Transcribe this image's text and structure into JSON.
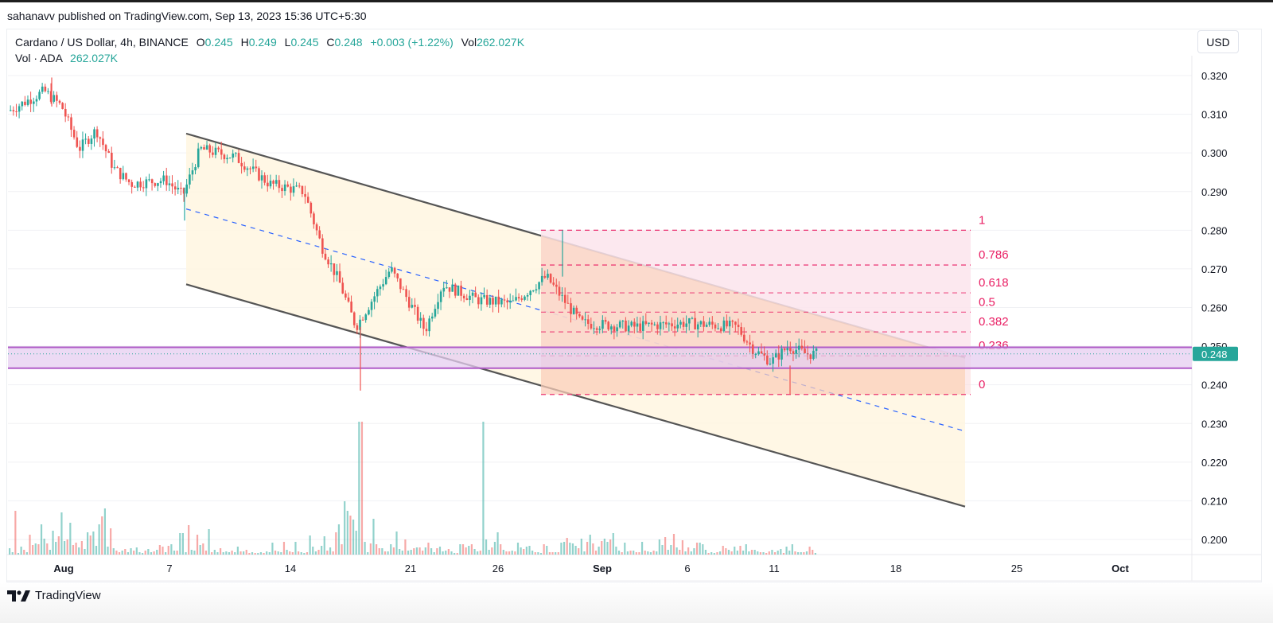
{
  "header": {
    "published": "sahanavv published on TradingView.com, Sep 13, 2023 15:36 UTC+5:30"
  },
  "legend": {
    "symbol": "Cardano / US Dollar, 4h, BINANCE",
    "open_label": "O",
    "open": "0.245",
    "high_label": "H",
    "high": "0.249",
    "low_label": "L",
    "low": "0.245",
    "close_label": "C",
    "close": "0.248",
    "change": "+0.003 (+1.22%)",
    "vol_label": "Vol",
    "vol": "262.027K",
    "vol_indicator_label": "Vol · ADA",
    "vol_indicator_value": "262.027K"
  },
  "currency_button": "USD",
  "last_price_tag": "0.248",
  "footer": {
    "brand": "TradingView"
  },
  "colors": {
    "up": "#26a69a",
    "down": "#ef5350",
    "channel_line": "#555555",
    "channel_fill": "#fff6e0",
    "midline": "#2962ff",
    "fib": "#e91e63",
    "fib_fill_upper": "#fce4ec",
    "fib_fill_lower": "#fde0d0",
    "support_zone": "#e6cef0",
    "support_border": "#b05cc8",
    "price_tag": "#26a69a"
  },
  "chart_data": {
    "type": "candlestick",
    "title": "Cardano / US Dollar, 4h, BINANCE",
    "xlabel": "",
    "ylabel": "USD",
    "ylim": [
      0.195,
      0.325
    ],
    "y_ticks": [
      "0.320",
      "0.310",
      "0.300",
      "0.290",
      "0.280",
      "0.270",
      "0.260",
      "0.250",
      "0.240",
      "0.230",
      "0.220",
      "0.210",
      "0.200"
    ],
    "x_ticks": [
      {
        "label": "Aug",
        "bold": true
      },
      {
        "label": "7",
        "bold": false
      },
      {
        "label": "14",
        "bold": false
      },
      {
        "label": "21",
        "bold": false
      },
      {
        "label": "26",
        "bold": false
      },
      {
        "label": "Sep",
        "bold": true
      },
      {
        "label": "6",
        "bold": false
      },
      {
        "label": "11",
        "bold": false
      },
      {
        "label": "18",
        "bold": false
      },
      {
        "label": "25",
        "bold": false
      },
      {
        "label": "Oct",
        "bold": true
      }
    ],
    "grid": true,
    "last_price": 0.248,
    "ohlc_last": {
      "open": 0.245,
      "high": 0.249,
      "low": 0.245,
      "close": 0.248,
      "change": 0.003,
      "change_pct": 1.22
    },
    "volume_last": "262.027K",
    "price_path_approx": [
      {
        "date": "Jul 29",
        "price": 0.311
      },
      {
        "date": "Jul 31",
        "price": 0.316
      },
      {
        "date": "Aug 1",
        "price": 0.312
      },
      {
        "date": "Aug 2",
        "price": 0.301
      },
      {
        "date": "Aug 3",
        "price": 0.306
      },
      {
        "date": "Aug 4",
        "price": 0.296
      },
      {
        "date": "Aug 5",
        "price": 0.292
      },
      {
        "date": "Aug 7",
        "price": 0.293
      },
      {
        "date": "Aug 8",
        "price": 0.289
      },
      {
        "date": "Aug 9",
        "price": 0.301
      },
      {
        "date": "Aug 11",
        "price": 0.299
      },
      {
        "date": "Aug 13",
        "price": 0.292
      },
      {
        "date": "Aug 15",
        "price": 0.29
      },
      {
        "date": "Aug 16",
        "price": 0.276
      },
      {
        "date": "Aug 17",
        "price": 0.267
      },
      {
        "date": "Aug 17 low",
        "price": 0.239
      },
      {
        "date": "Aug 18",
        "price": 0.255
      },
      {
        "date": "Aug 20",
        "price": 0.27
      },
      {
        "date": "Aug 22",
        "price": 0.254
      },
      {
        "date": "Aug 23",
        "price": 0.266
      },
      {
        "date": "Aug 25",
        "price": 0.262
      },
      {
        "date": "Aug 27",
        "price": 0.261
      },
      {
        "date": "Aug 29",
        "price": 0.268
      },
      {
        "date": "Aug 29 high",
        "price": 0.28
      },
      {
        "date": "Aug 31",
        "price": 0.256
      },
      {
        "date": "Sep 3",
        "price": 0.255
      },
      {
        "date": "Sep 6",
        "price": 0.256
      },
      {
        "date": "Sep 9",
        "price": 0.255
      },
      {
        "date": "Sep 10",
        "price": 0.249
      },
      {
        "date": "Sep 11",
        "price": 0.246
      },
      {
        "date": "Sep 11 low",
        "price": 0.238
      },
      {
        "date": "Sep 12",
        "price": 0.25
      },
      {
        "date": "Sep 13",
        "price": 0.248
      }
    ],
    "volume_spikes": [
      {
        "date": "Aug 17",
        "relative": 1.0,
        "direction": "down"
      },
      {
        "date": "Aug 24",
        "relative": 1.0,
        "direction": "down"
      }
    ],
    "annotations": {
      "descending_channel": {
        "upper": [
          {
            "date": "Aug 8",
            "price": 0.305
          },
          {
            "date": "Sep 22",
            "price": 0.247
          }
        ],
        "lower": [
          {
            "date": "Aug 8",
            "price": 0.266
          },
          {
            "date": "Sep 22",
            "price": 0.2085
          }
        ],
        "midline": [
          {
            "date": "Aug 8",
            "price": 0.2855
          },
          {
            "date": "Sep 22",
            "price": 0.228
          }
        ]
      },
      "fib_retracement": {
        "from": {
          "date": "Aug 29",
          "price": 0.28
        },
        "to": {
          "date": "Sep 22",
          "price": 0.2375
        },
        "levels": [
          {
            "ratio": "1",
            "price": 0.28
          },
          {
            "ratio": "0.786",
            "price": 0.271
          },
          {
            "ratio": "0.618",
            "price": 0.2638
          },
          {
            "ratio": "0.5",
            "price": 0.2588
          },
          {
            "ratio": "0.382",
            "price": 0.2537
          },
          {
            "ratio": "0.236",
            "price": 0.2475
          },
          {
            "ratio": "0",
            "price": 0.2375
          }
        ]
      },
      "support_zone": {
        "top": 0.2497,
        "bottom": 0.2443
      }
    }
  }
}
